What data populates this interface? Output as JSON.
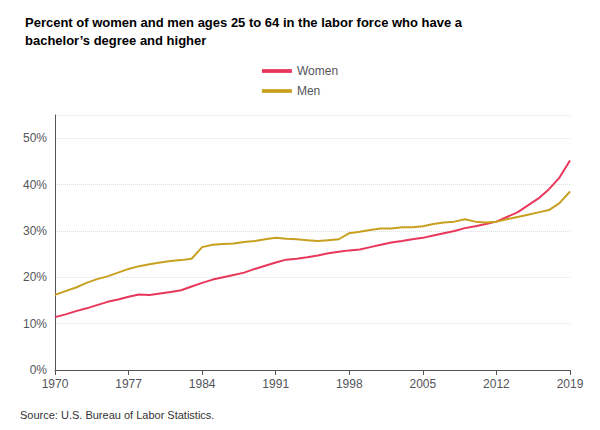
{
  "chart_data": {
    "type": "line",
    "title": "Percent of women and men ages 25 to 64 in the labor force who have a\nbachelor’s degree and higher",
    "annotations": [
      "Source: U.S. Bureau of Labor Statistics."
    ],
    "x": [
      1970,
      1971,
      1972,
      1973,
      1974,
      1975,
      1976,
      1977,
      1978,
      1979,
      1980,
      1981,
      1982,
      1983,
      1984,
      1985,
      1986,
      1987,
      1988,
      1989,
      1990,
      1991,
      1992,
      1993,
      1994,
      1995,
      1996,
      1997,
      1998,
      1999,
      2000,
      2001,
      2002,
      2003,
      2004,
      2005,
      2006,
      2007,
      2008,
      2009,
      2010,
      2011,
      2012,
      2013,
      2014,
      2015,
      2016,
      2017,
      2018,
      2019
    ],
    "series": [
      {
        "name": "Women",
        "color": "#e8375a",
        "values": [
          0.114,
          0.12,
          0.127,
          0.133,
          0.14,
          0.147,
          0.152,
          0.158,
          0.163,
          0.162,
          0.165,
          0.168,
          0.172,
          0.18,
          0.188,
          0.195,
          0.2,
          0.205,
          0.21,
          0.218,
          0.225,
          0.232,
          0.238,
          0.24,
          0.243,
          0.247,
          0.252,
          0.255,
          0.258,
          0.26,
          0.265,
          0.27,
          0.275,
          0.278,
          0.282,
          0.285,
          0.29,
          0.295,
          0.3,
          0.306,
          0.31,
          0.315,
          0.32,
          0.33,
          0.34,
          0.355,
          0.37,
          0.39,
          0.415,
          0.452
        ]
      },
      {
        "name": "Men",
        "color": "#c8a020",
        "values": [
          0.162,
          0.17,
          0.178,
          0.188,
          0.196,
          0.202,
          0.21,
          0.218,
          0.224,
          0.228,
          0.232,
          0.235,
          0.237,
          0.24,
          0.265,
          0.27,
          0.272,
          0.273,
          0.276,
          0.278,
          0.282,
          0.285,
          0.283,
          0.282,
          0.28,
          0.278,
          0.28,
          0.282,
          0.295,
          0.298,
          0.302,
          0.305,
          0.305,
          0.308,
          0.308,
          0.31,
          0.315,
          0.318,
          0.32,
          0.325,
          0.32,
          0.318,
          0.32,
          0.325,
          0.33,
          0.335,
          0.34,
          0.345,
          0.36,
          0.385
        ]
      }
    ],
    "xlim": [
      1970,
      2019
    ],
    "xticks": [
      1970,
      1977,
      1984,
      1991,
      1998,
      2005,
      2012,
      2019
    ],
    "ylim": [
      0,
      0.55
    ],
    "yticks": [
      {
        "value": 0,
        "label": "0%"
      },
      {
        "value": 0.1,
        "label": "10%"
      },
      {
        "value": 0.2,
        "label": "20%"
      },
      {
        "value": 0.3,
        "label": "30%"
      },
      {
        "value": 0.4,
        "label": "40%"
      },
      {
        "value": 0.5,
        "label": "50%"
      }
    ],
    "grid": true,
    "legend": "top"
  }
}
